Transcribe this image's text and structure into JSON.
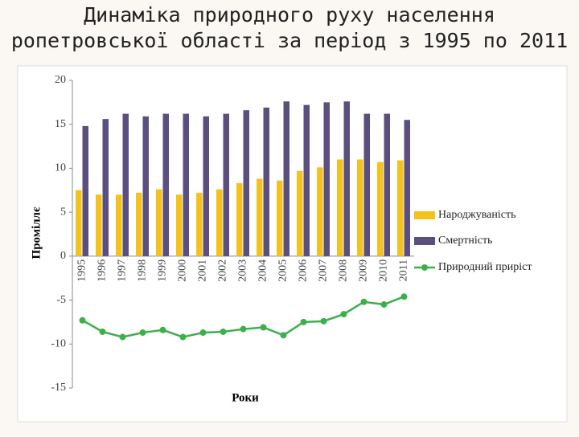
{
  "title_lines": [
    "Динаміка природного руху населення",
    "ропетровської області за період з 1995 по 2011"
  ],
  "chart_data": {
    "type": "bar_line",
    "y_label": "Проміллє",
    "x_label": "Роки",
    "categories": [
      "1995",
      "1996",
      "1997",
      "1998",
      "1999",
      "2000",
      "2001",
      "2002",
      "2003",
      "2004",
      "2005",
      "2006",
      "2007",
      "2008",
      "2009",
      "2010",
      "2011"
    ],
    "series": [
      {
        "name": "Народжуваність",
        "type": "bar",
        "color": "#f5c21b",
        "values": [
          7.5,
          7.0,
          7.0,
          7.2,
          7.6,
          7.0,
          7.2,
          7.6,
          8.3,
          8.8,
          8.6,
          9.7,
          10.1,
          11.0,
          11.0,
          10.7,
          10.9
        ]
      },
      {
        "name": "Смертність",
        "type": "bar",
        "color": "#5b4f80",
        "values": [
          14.8,
          15.6,
          16.2,
          15.9,
          16.2,
          16.2,
          15.9,
          16.2,
          16.6,
          16.9,
          17.6,
          17.2,
          17.5,
          17.6,
          16.2,
          16.2,
          15.5
        ]
      },
      {
        "name": "Природний приріст",
        "type": "line",
        "color": "#3cb04a",
        "values": [
          -7.3,
          -8.6,
          -9.2,
          -8.7,
          -8.4,
          -9.2,
          -8.7,
          -8.6,
          -8.3,
          -8.1,
          -9.0,
          -7.5,
          -7.4,
          -6.6,
          -5.2,
          -5.5,
          -4.6
        ]
      }
    ],
    "ylim": [
      -15,
      20
    ],
    "yticks": [
      -15,
      -10,
      -5,
      0,
      5,
      10,
      15,
      20
    ],
    "grid": false,
    "legend": "right"
  }
}
